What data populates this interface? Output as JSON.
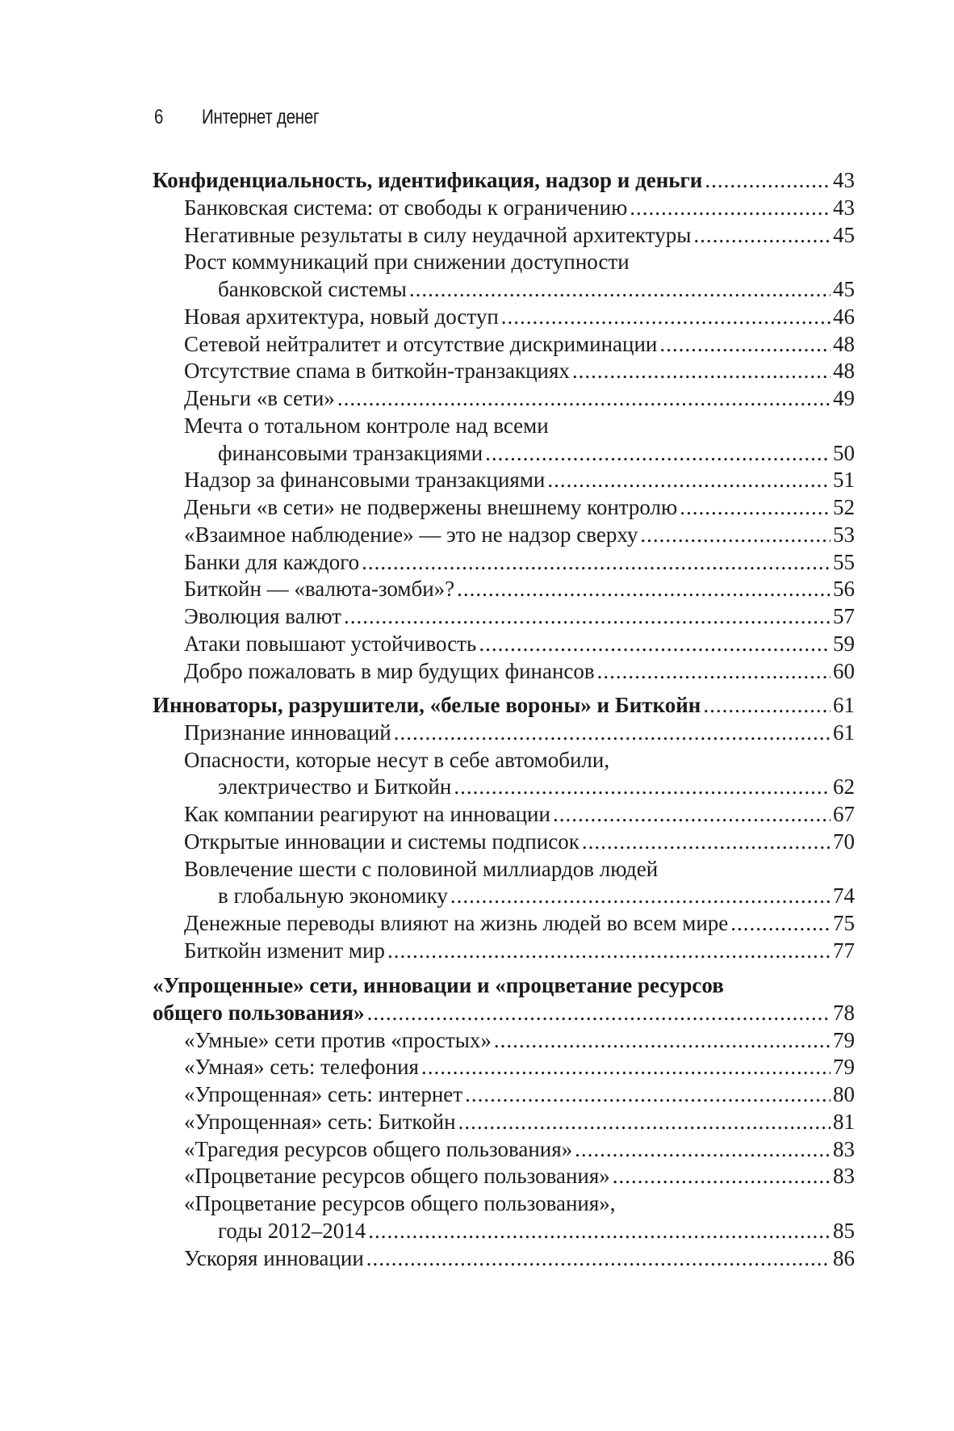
{
  "header": {
    "page_number": "6",
    "running_title": "Интернет денег"
  },
  "sections": [
    {
      "heading": [
        "Конфиденциальность, идентификация, надзор и деньги"
      ],
      "page": "43",
      "items": [
        {
          "text": "Банковская система: от свободы к ограничению",
          "page": "43"
        },
        {
          "text": "Негативные результаты в силу неудачной архитектуры",
          "page": "45"
        },
        {
          "text": "Рост коммуникаций при снижении доступности",
          "cont": "банковской системы",
          "page": "45"
        },
        {
          "text": "Новая архитектура, новый доступ",
          "page": "46"
        },
        {
          "text": "Сетевой нейтралитет и отсутствие дискриминации",
          "page": "48"
        },
        {
          "text": "Отсутствие спама в биткойн-транзакциях",
          "page": "48"
        },
        {
          "text": "Деньги «в сети»",
          "page": "49"
        },
        {
          "text": "Мечта о тотальном контроле над всеми",
          "cont": "финансовыми транзакциями",
          "page": "50"
        },
        {
          "text": "Надзор за финансовыми транзакциями",
          "page": "51"
        },
        {
          "text": "Деньги «в сети» не подвержены внешнему контролю",
          "page": "52"
        },
        {
          "text": "«Взаимное наблюдение» — это не надзор сверху",
          "page": "53"
        },
        {
          "text": "Банки для каждого",
          "page": "55"
        },
        {
          "text": "Биткойн — «валюта-зомби»?",
          "page": "56"
        },
        {
          "text": "Эволюция валют",
          "page": "57"
        },
        {
          "text": "Атаки повышают устойчивость",
          "page": "59"
        },
        {
          "text": "Добро пожаловать в мир будущих финансов",
          "page": "60"
        }
      ]
    },
    {
      "heading": [
        "Инноваторы, разрушители, «белые вороны» и Биткойн"
      ],
      "page": "61",
      "items": [
        {
          "text": "Признание инноваций",
          "page": "61"
        },
        {
          "text": "Опасности, которые несут в себе автомобили,",
          "cont": "электричество и Биткойн",
          "page": "62"
        },
        {
          "text": "Как компании реагируют на инновации",
          "page": "67"
        },
        {
          "text": "Открытые инновации и системы подписок",
          "page": "70"
        },
        {
          "text": "Вовлечение шести с половиной миллиардов людей",
          "cont": "в глобальную экономику",
          "page": "74"
        },
        {
          "text": "Денежные переводы влияют на жизнь людей во всем мире",
          "page": "75"
        },
        {
          "text": "Биткойн изменит мир",
          "page": "77"
        }
      ]
    },
    {
      "heading": [
        "«Упрощенные» сети, инновации и «процветание ресурсов",
        "общего пользования»"
      ],
      "page": "78",
      "items": [
        {
          "text": "«Умные» сети против «простых»",
          "page": "79"
        },
        {
          "text": "«Умная» сеть: телефония",
          "page": "79"
        },
        {
          "text": "«Упрощенная» сеть: интернет",
          "page": "80"
        },
        {
          "text": "«Упрощенная» сеть: Биткойн",
          "page": "81"
        },
        {
          "text": "«Трагедия ресурсов общего пользования»",
          "page": "83"
        },
        {
          "text": "«Процветание ресурсов общего пользования»",
          "page": "83"
        },
        {
          "text": "«Процветание ресурсов общего пользования»,",
          "cont": "годы 2012–2014",
          "page": "85"
        },
        {
          "text": "Ускоряя инновации",
          "page": "86"
        }
      ]
    }
  ]
}
